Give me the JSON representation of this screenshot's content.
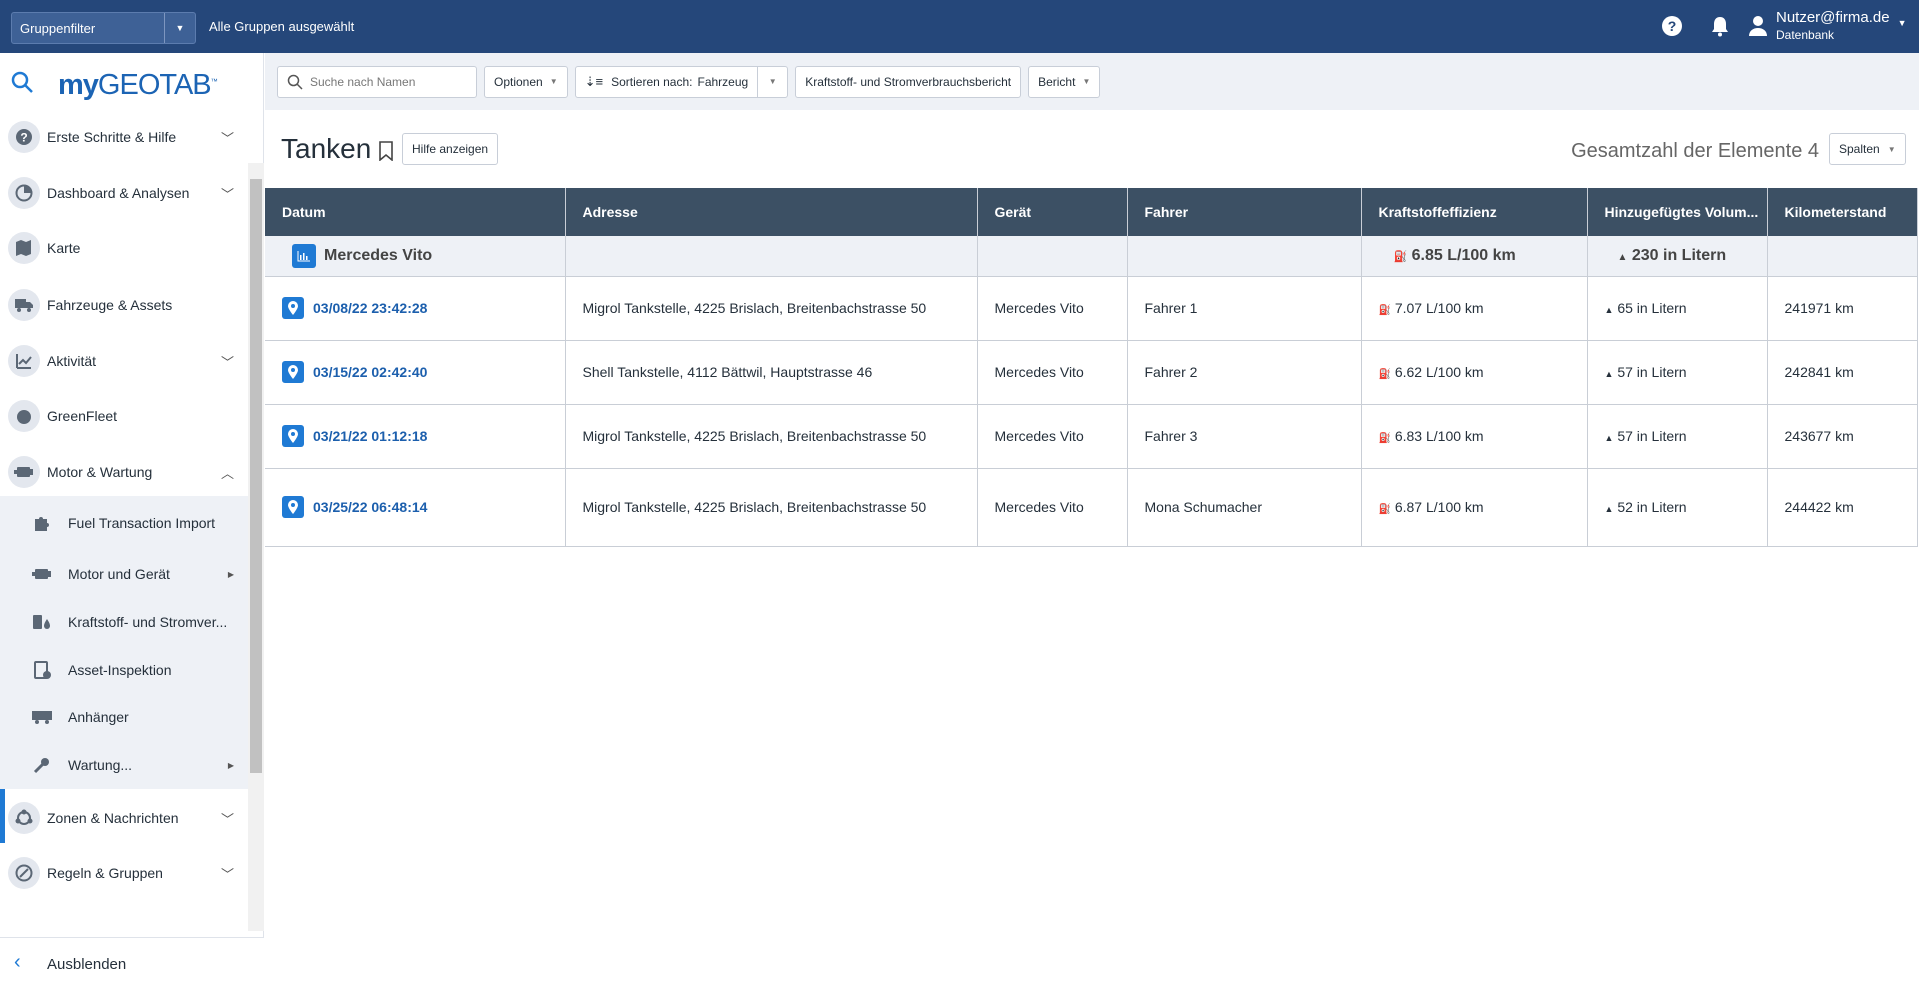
{
  "topbar": {
    "group_filter": "Gruppenfilter",
    "selected_groups": "Alle Gruppen ausgewählt",
    "user": "Nutzer@firma.de",
    "database": "Datenbank"
  },
  "sidebar": {
    "logo": "myGEOTAB",
    "items": [
      {
        "label": "Erste Schritte & Hilfe",
        "icon": "help-icon",
        "chevron": "down"
      },
      {
        "label": "Dashboard & Analysen",
        "icon": "pie-chart-icon",
        "chevron": "down"
      },
      {
        "label": "Karte",
        "icon": "map-icon"
      },
      {
        "label": "Fahrzeuge & Assets",
        "icon": "truck-icon"
      },
      {
        "label": "Aktivität",
        "icon": "activity-chart-icon",
        "chevron": "down"
      },
      {
        "label": "GreenFleet",
        "icon": "leaf-icon"
      },
      {
        "label": "Motor & Wartung",
        "icon": "engine-icon",
        "chevron": "up"
      }
    ],
    "subitems": [
      {
        "label": "Fuel Transaction Import",
        "icon": "puzzle-icon"
      },
      {
        "label": "Motor und Gerät",
        "icon": "engine-icon",
        "arrow": true
      },
      {
        "label": "Kraftstoff- und Stromver...",
        "icon": "fuel-drop-icon"
      },
      {
        "label": "Asset-Inspektion",
        "icon": "clipboard-check-icon"
      },
      {
        "label": "Anhänger",
        "icon": "trailer-icon"
      },
      {
        "label": "Wartung...",
        "icon": "wrench-icon",
        "arrow": true
      }
    ],
    "after": [
      {
        "label": "Zonen & Nachrichten",
        "icon": "zones-icon",
        "chevron": "down"
      },
      {
        "label": "Regeln & Gruppen",
        "icon": "rules-icon",
        "chevron": "down"
      }
    ],
    "collapse": "Ausblenden"
  },
  "toolbar": {
    "search_placeholder": "Suche nach Namen",
    "options": "Optionen",
    "sort_label": "Sortieren nach:",
    "sort_value": "Fahrzeug",
    "report_name": "Kraftstoff- und Stromverbrauchsbericht",
    "report": "Bericht"
  },
  "page": {
    "title": "Tanken",
    "help": "Hilfe anzeigen",
    "total": "Gesamtzahl der Elemente 4",
    "columns": "Spalten"
  },
  "table": {
    "headers": [
      "Datum",
      "Adresse",
      "Gerät",
      "Fahrer",
      "Kraftstoffeffizienz",
      "Hinzugefügtes Volum...",
      "Kilometerstand"
    ],
    "group": {
      "name": "Mercedes Vito",
      "efficiency": "6.85 L/100 km",
      "volume": "230 in Litern"
    },
    "rows": [
      {
        "date": "03/08/22 23:42:28",
        "address": "Migrol Tankstelle, 4225 Brislach, Breitenbachstrasse 50",
        "device": "Mercedes Vito",
        "driver": "Fahrer 1",
        "efficiency": "7.07 L/100 km",
        "volume": "65 in Litern",
        "odometer": "241971 km"
      },
      {
        "date": "03/15/22 02:42:40",
        "address": "Shell Tankstelle, 4112 Bättwil, Hauptstrasse 46",
        "device": "Mercedes Vito",
        "driver": "Fahrer 2",
        "efficiency": "6.62 L/100 km",
        "volume": "57 in Litern",
        "odometer": "242841 km"
      },
      {
        "date": "03/21/22 01:12:18",
        "address": "Migrol Tankstelle, 4225 Brislach, Breitenbachstrasse 50",
        "device": "Mercedes Vito",
        "driver": "Fahrer 3",
        "efficiency": "6.83 L/100 km",
        "volume": "57 in Litern",
        "odometer": "243677 km"
      },
      {
        "date": "03/25/22 06:48:14",
        "address": "Migrol Tankstelle, 4225 Brislach, Breitenbachstrasse 50",
        "device": "Mercedes Vito",
        "driver": "Mona Schumacher",
        "efficiency": "6.87 L/100 km",
        "volume": "52 in Litern",
        "odometer": "244422 km"
      }
    ]
  },
  "colors": {
    "topbar": "#25477a",
    "accent": "#1f7ad4",
    "table_header": "#3c5064"
  }
}
